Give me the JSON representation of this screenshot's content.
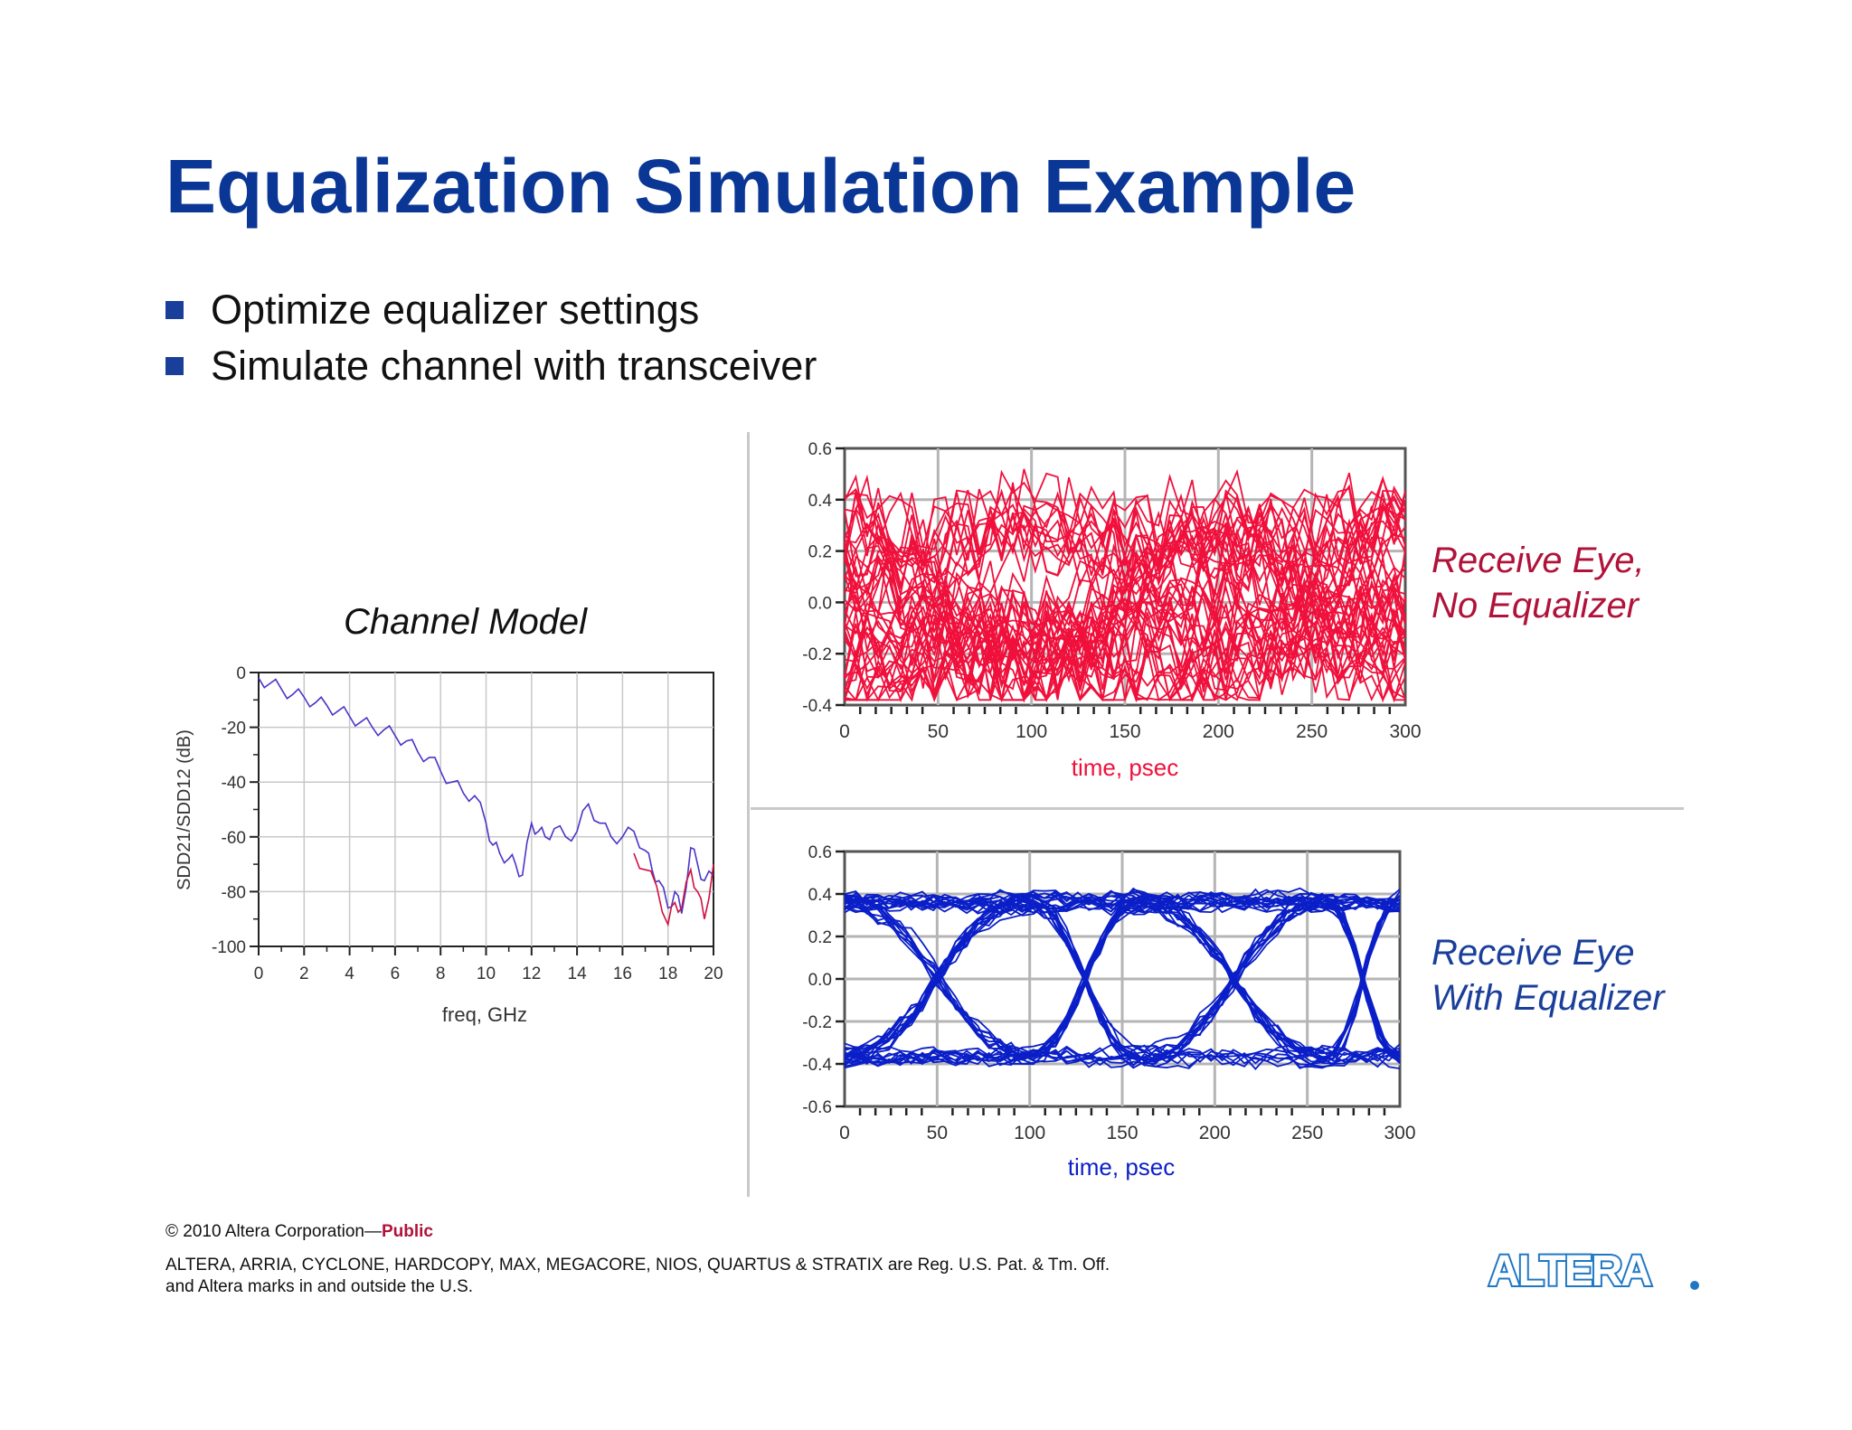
{
  "slide": {
    "title": "Equalization Simulation Example",
    "bullets": [
      "Optimize equalizer settings",
      "Simulate channel with transceiver"
    ],
    "accent_color": "#0a3696"
  },
  "channel_plot": {
    "caption": "Channel Model",
    "xlabel": "freq, GHz",
    "ylabel": "SDD21/SDD12 (dB)",
    "x_ticks": [
      "0",
      "2",
      "4",
      "6",
      "8",
      "10",
      "12",
      "14",
      "16",
      "18",
      "20"
    ],
    "y_ticks": [
      "0",
      "-20",
      "-40",
      "-60",
      "-80",
      "-100"
    ]
  },
  "eye_no_eq": {
    "caption_line1": "Receive Eye,",
    "caption_line2": "No Equalizer",
    "xlabel": "time, psec",
    "x_ticks": [
      "0",
      "50",
      "100",
      "150",
      "200",
      "250",
      "300"
    ],
    "y_ticks": [
      "0.6",
      "0.4",
      "0.2",
      "0.0",
      "-0.2",
      "-0.4"
    ],
    "color": "#f0103c"
  },
  "eye_eq": {
    "caption_line1": "Receive Eye",
    "caption_line2": "With Equalizer",
    "xlabel": "time, psec",
    "x_ticks": [
      "0",
      "50",
      "100",
      "150",
      "200",
      "250",
      "300"
    ],
    "y_ticks": [
      "0.6",
      "0.4",
      "0.2",
      "0.0",
      "-0.2",
      "-0.4",
      "-0.6"
    ],
    "color": "#0b1fc8"
  },
  "chart_data": [
    {
      "type": "line",
      "title": "Channel Model",
      "xlabel": "freq, GHz",
      "ylabel": "SDD21/SDD12 (dB)",
      "xlim": [
        0,
        20
      ],
      "ylim": [
        -100,
        0
      ],
      "grid": true,
      "series": [
        {
          "x": [
            0,
            0.5,
            1,
            1.5,
            2,
            2.5,
            3,
            3.5,
            4,
            4.5,
            5,
            5.5,
            6,
            6.5,
            7,
            7.5,
            8,
            8.5,
            9,
            9.5,
            10,
            10.3,
            10.6,
            11,
            11.3,
            11.6,
            12,
            12.3,
            12.6,
            13,
            13.5,
            14,
            14.5,
            15,
            15.5,
            16,
            16.5,
            17,
            17.3,
            17.6,
            18,
            18.3,
            18.6,
            19,
            19.3,
            19.6,
            20
          ],
          "values": [
            -2,
            -4,
            -6,
            -8,
            -9,
            -11,
            -12,
            -14,
            -16,
            -18,
            -20,
            -21,
            -23,
            -25,
            -29,
            -31,
            -36,
            -40,
            -44,
            -45,
            -55,
            -63,
            -66,
            -68,
            -70,
            -74,
            -55,
            -58,
            -60,
            -57,
            -60,
            -58,
            -48,
            -55,
            -60,
            -60,
            -58,
            -65,
            -72,
            -76,
            -86,
            -80,
            -88,
            -64,
            -70,
            -76,
            -74
          ]
        },
        {
          "x": [
            16.5,
            17,
            17.5,
            18,
            18.3,
            18.6,
            19,
            19.3,
            19.6,
            20
          ],
          "values": [
            -66,
            -72,
            -78,
            -92,
            -84,
            -86,
            -72,
            -80,
            -90,
            -70
          ]
        }
      ]
    },
    {
      "type": "line",
      "title": "Receive Eye, No Equalizer",
      "xlabel": "time, psec",
      "xlim": [
        0,
        300
      ],
      "ylim": [
        -0.4,
        0.6
      ],
      "grid": true,
      "series": [
        {
          "name": "traces",
          "x": [
            0,
            100,
            200,
            300
          ],
          "values": [
            0.38,
            -0.38,
            0.38,
            -0.38
          ]
        }
      ]
    },
    {
      "type": "line",
      "title": "Receive Eye With Equalizer",
      "xlabel": "time, psec",
      "xlim": [
        0,
        300
      ],
      "ylim": [
        -0.6,
        0.6
      ],
      "grid": true,
      "series": [
        {
          "name": "traces",
          "x": [
            0,
            100,
            160,
            260,
            300
          ],
          "values": [
            0.4,
            0.0,
            -0.4,
            0.0,
            0.4
          ]
        }
      ]
    }
  ]
}
